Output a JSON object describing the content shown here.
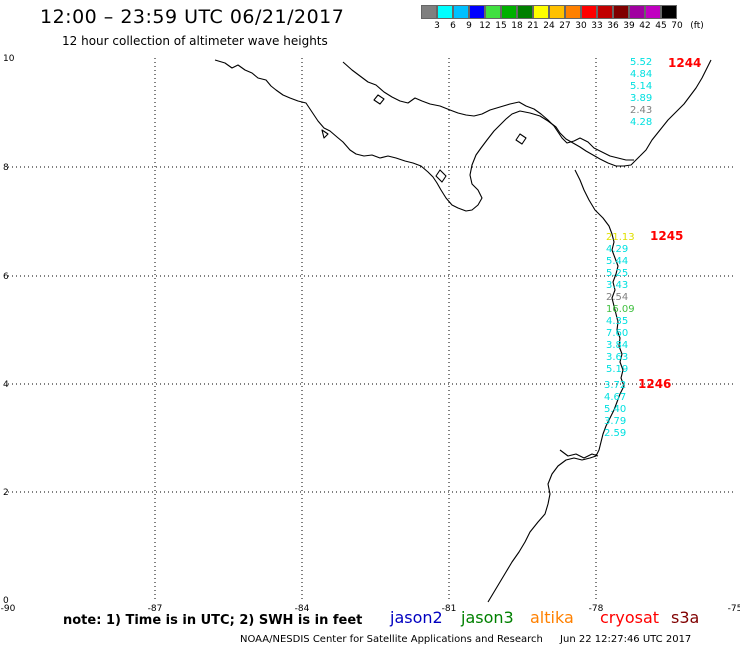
{
  "header": {
    "title": "12:00 – 23:59 UTC 06/21/2017",
    "subtitle": "12 hour collection of altimeter wave heights"
  },
  "legend": {
    "labels": [
      "3",
      "6",
      "9",
      "12",
      "15",
      "18",
      "21",
      "24",
      "27",
      "30",
      "33",
      "36",
      "39",
      "42",
      "45",
      "70",
      "(ft)"
    ],
    "colors": [
      "#808080",
      "#00ffff",
      "#00c0ff",
      "#0000ff",
      "#40e040",
      "#00b000",
      "#008000",
      "#ffff00",
      "#ffc000",
      "#ff8000",
      "#ff0000",
      "#c00000",
      "#800000",
      "#a000a0",
      "#c000c0",
      "#000000"
    ]
  },
  "axes": {
    "x_ticks": [
      "-90",
      "-87",
      "-84",
      "-81",
      "-78",
      "-75"
    ],
    "y_ticks": [
      "10",
      "8",
      "6",
      "4",
      "2",
      "0"
    ]
  },
  "tracks": [
    {
      "id": "1244",
      "color": "#ff0000",
      "points": [
        {
          "v": "5.52",
          "color": "#00e0e0"
        },
        {
          "v": "4.84",
          "color": "#00e0e0"
        },
        {
          "v": "5.14",
          "color": "#00e0e0"
        },
        {
          "v": "3.89",
          "color": "#00e0e0"
        },
        {
          "v": "2.43",
          "color": "#808080"
        },
        {
          "v": "4.28",
          "color": "#00e0e0"
        }
      ]
    },
    {
      "id": "1245",
      "color": "#ff0000",
      "points": [
        {
          "v": "21.13",
          "color": "#e0e000"
        },
        {
          "v": "4.29",
          "color": "#00e0e0"
        },
        {
          "v": "5.44",
          "color": "#00e0e0"
        },
        {
          "v": "5.25",
          "color": "#00e0e0"
        },
        {
          "v": "3.43",
          "color": "#00e0e0"
        },
        {
          "v": "2.54",
          "color": "#808080"
        },
        {
          "v": "16.09",
          "color": "#40c040"
        },
        {
          "v": "4.35",
          "color": "#00e0e0"
        },
        {
          "v": "7.60",
          "color": "#00e0e0"
        },
        {
          "v": "3.84",
          "color": "#00e0e0"
        },
        {
          "v": "3.63",
          "color": "#00e0e0"
        },
        {
          "v": "5.19",
          "color": "#00e0e0"
        }
      ]
    },
    {
      "id": "1246",
      "color": "#ff0000",
      "points": [
        {
          "v": "3.72",
          "color": "#00e0e0"
        },
        {
          "v": "4.67",
          "color": "#00e0e0"
        },
        {
          "v": "5.40",
          "color": "#00e0e0"
        },
        {
          "v": "3.79",
          "color": "#00e0e0"
        },
        {
          "v": "2.59",
          "color": "#00e0e0"
        }
      ]
    }
  ],
  "footer": {
    "note": "note: 1) Time is in UTC; 2) SWH is in feet",
    "credit": "NOAA/NESDIS Center for Satellite Applications and Research",
    "timestamp": "Jun 22 12:27:46 UTC 2017",
    "satellites": [
      {
        "name": "jason2",
        "color": "#0000c0"
      },
      {
        "name": "jason3",
        "color": "#008000"
      },
      {
        "name": "altika",
        "color": "#ff8000"
      },
      {
        "name": "cryosat",
        "color": "#ff0000"
      },
      {
        "name": "s3a",
        "color": "#800000"
      }
    ]
  }
}
